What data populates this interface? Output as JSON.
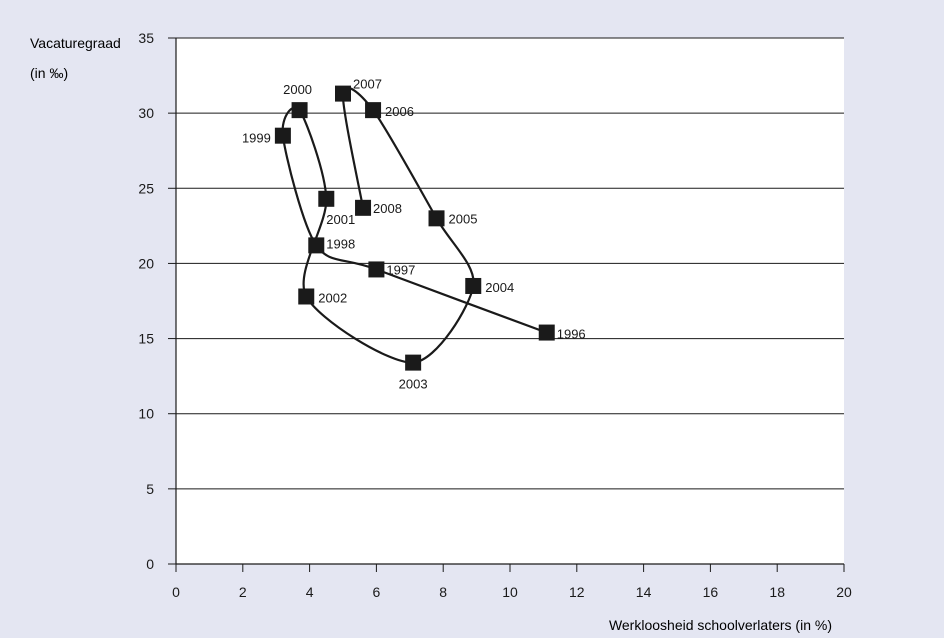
{
  "chart_data": {
    "type": "scatter",
    "connected": true,
    "xlabel": "Werkloosheid schoolverlaters (in %)",
    "ylabel": [
      "Vacaturegraad",
      "(in ‰)"
    ],
    "xlim": [
      0,
      20
    ],
    "ylim": [
      0,
      35
    ],
    "xticks": [
      "0",
      "2",
      "4",
      "6",
      "8",
      "10",
      "12",
      "14",
      "16",
      "18",
      "20"
    ],
    "yticks": [
      "0",
      "5",
      "10",
      "15",
      "20",
      "25",
      "30",
      "35"
    ],
    "grid": "horizontal",
    "points": [
      {
        "label": "1996",
        "x": 11.1,
        "y": 15.4
      },
      {
        "label": "1997",
        "x": 6.0,
        "y": 19.6
      },
      {
        "label": "1998",
        "x": 4.2,
        "y": 21.2
      },
      {
        "label": "1999",
        "x": 3.2,
        "y": 28.5
      },
      {
        "label": "2000",
        "x": 3.7,
        "y": 30.2
      },
      {
        "label": "2001",
        "x": 4.5,
        "y": 24.3
      },
      {
        "label": "2002",
        "x": 3.9,
        "y": 17.8
      },
      {
        "label": "2003",
        "x": 7.1,
        "y": 13.4
      },
      {
        "label": "2004",
        "x": 8.9,
        "y": 18.5
      },
      {
        "label": "2005",
        "x": 7.8,
        "y": 23.0
      },
      {
        "label": "2006",
        "x": 5.9,
        "y": 30.2
      },
      {
        "label": "2007",
        "x": 5.0,
        "y": 31.3
      },
      {
        "label": "2008",
        "x": 5.6,
        "y": 23.7
      }
    ],
    "colors": {
      "background": "#e4e6f2",
      "plot": "#ffffff",
      "ink": "#1a1a1a"
    }
  }
}
